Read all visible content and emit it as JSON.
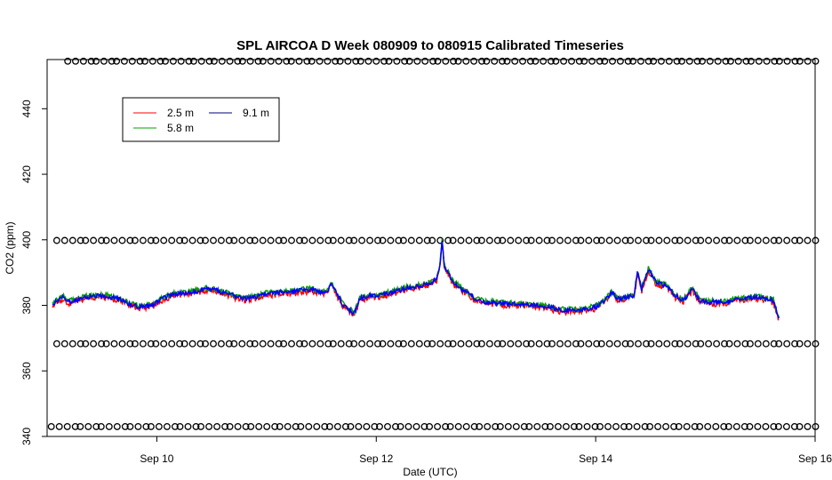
{
  "chart_data": {
    "type": "line",
    "title": "SPL AIRCOA D  Week 080909 to 080915  Calibrated Timeseries",
    "xlabel": "Date (UTC)",
    "ylabel": "CO2 (ppm)",
    "xlim": [
      9.0,
      16.0
    ],
    "ylim": [
      340,
      455
    ],
    "x_ticks": [
      {
        "value": 10,
        "label": "Sep 10"
      },
      {
        "value": 12,
        "label": "Sep 12"
      },
      {
        "value": 14,
        "label": "Sep 14"
      },
      {
        "value": 16,
        "label": "Sep 16"
      }
    ],
    "y_ticks": [
      {
        "value": 340,
        "label": "340"
      },
      {
        "value": 360,
        "label": "360"
      },
      {
        "value": 380,
        "label": "380"
      },
      {
        "value": 400,
        "label": "400"
      },
      {
        "value": 420,
        "label": "420"
      },
      {
        "value": 440,
        "label": "440"
      }
    ],
    "legend": {
      "placement": "top-left",
      "entries": [
        {
          "name": "2.5 m",
          "color": "#ff0000"
        },
        {
          "name": "9.1 m",
          "color": "#000080"
        },
        {
          "name": "5.8 m",
          "color": "#00a000"
        }
      ]
    },
    "flag_marker": "o",
    "flag_rows": [
      {
        "y": 454.5,
        "x_start": 9.2,
        "x_end": 16.0,
        "count": 108
      },
      {
        "y": 399.8,
        "x_start": 9.1,
        "x_end": 16.0,
        "count": 108
      },
      {
        "y": 368.3,
        "x_start": 9.1,
        "x_end": 16.0,
        "count": 108
      },
      {
        "y": 343.0,
        "x_start": 9.05,
        "x_end": 16.0,
        "count": 108
      }
    ],
    "series_keypoints": [
      [
        9.05,
        380.5
      ],
      [
        9.1,
        381.5
      ],
      [
        9.15,
        382.5
      ],
      [
        9.2,
        381.0
      ],
      [
        9.35,
        382.5
      ],
      [
        9.5,
        383.0
      ],
      [
        9.65,
        382.0
      ],
      [
        9.75,
        380.5
      ],
      [
        9.85,
        379.5
      ],
      [
        9.95,
        380.0
      ],
      [
        10.05,
        382.0
      ],
      [
        10.15,
        383.5
      ],
      [
        10.3,
        384.0
      ],
      [
        10.45,
        385.0
      ],
      [
        10.55,
        384.5
      ],
      [
        10.65,
        383.5
      ],
      [
        10.8,
        382.0
      ],
      [
        10.9,
        382.5
      ],
      [
        11.0,
        383.5
      ],
      [
        11.15,
        384.0
      ],
      [
        11.3,
        384.5
      ],
      [
        11.4,
        384.8
      ],
      [
        11.5,
        384.0
      ],
      [
        11.55,
        384.5
      ],
      [
        11.6,
        386.5
      ],
      [
        11.65,
        383.0
      ],
      [
        11.7,
        380.0
      ],
      [
        11.8,
        377.5
      ],
      [
        11.85,
        382.0
      ],
      [
        11.95,
        383.0
      ],
      [
        12.05,
        383.0
      ],
      [
        12.15,
        384.0
      ],
      [
        12.3,
        385.5
      ],
      [
        12.4,
        386.0
      ],
      [
        12.5,
        387.0
      ],
      [
        12.55,
        388.0
      ],
      [
        12.58,
        392.0
      ],
      [
        12.6,
        400.0
      ],
      [
        12.62,
        392.0
      ],
      [
        12.7,
        387.0
      ],
      [
        12.8,
        384.5
      ],
      [
        12.9,
        382.0
      ],
      [
        13.0,
        381.0
      ],
      [
        13.2,
        380.5
      ],
      [
        13.5,
        380.0
      ],
      [
        13.7,
        378.5
      ],
      [
        13.85,
        378.5
      ],
      [
        14.0,
        379.5
      ],
      [
        14.1,
        382.0
      ],
      [
        14.15,
        384.0
      ],
      [
        14.2,
        382.0
      ],
      [
        14.3,
        382.5
      ],
      [
        14.35,
        383.0
      ],
      [
        14.38,
        390.0
      ],
      [
        14.42,
        385.0
      ],
      [
        14.48,
        391.0
      ],
      [
        14.55,
        387.0
      ],
      [
        14.65,
        386.0
      ],
      [
        14.72,
        383.0
      ],
      [
        14.8,
        381.5
      ],
      [
        14.88,
        385.0
      ],
      [
        14.95,
        381.5
      ],
      [
        15.05,
        381.0
      ],
      [
        15.2,
        381.0
      ],
      [
        15.3,
        382.0
      ],
      [
        15.45,
        382.5
      ],
      [
        15.55,
        382.0
      ],
      [
        15.62,
        381.5
      ],
      [
        15.65,
        378.0
      ],
      [
        15.67,
        376.0
      ]
    ]
  }
}
